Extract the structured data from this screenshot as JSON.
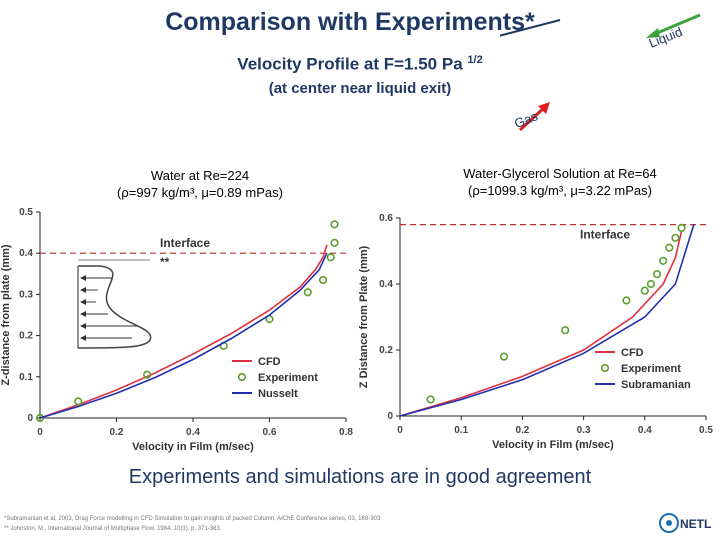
{
  "header": {
    "title": "Comparison with Experiments*",
    "subtitle": "Velocity Profile at F=1.50 Pa",
    "subtitle_sup": "1/2",
    "subtitle2": "(at center near liquid exit)"
  },
  "flow_labels": {
    "liquid": "Liquid",
    "gas": "Gas"
  },
  "left_caption": {
    "line1": "Water at Re=224",
    "line2": "(ρ=997 kg/m³, μ=0.89 mPas)"
  },
  "right_caption": {
    "line1": "Water-Glycerol  Solution at Re=64",
    "line2": "(ρ=1099.3 kg/m³, μ=3.22 mPas)"
  },
  "conclusion": "Experiments and simulations are in good agreement",
  "footnotes": [
    "*Subramanian et al, 2003, Drag Force modelling in CFD Simulation to gain insights of packed Column, AIChE Conference series, 03, 189-303",
    "** Johnston, M., International Journal of Multiphase Flow, 1984, 10(3), p. 371-383"
  ],
  "logo": {
    "text": "NETL"
  },
  "colors": {
    "title": "#1f3864",
    "cfd": "#e03040",
    "experiment": "#5aa02c",
    "model": "#2030b0",
    "interface": "#c03030",
    "liquid_arrow": "#3aa33a",
    "gas_arrow": "#e02020"
  },
  "chart_data": [
    {
      "type": "line",
      "title": "",
      "xlabel": "Velocity in Film (m/sec)",
      "ylabel": "Z-distance from plate (mm)",
      "xlim": [
        0,
        0.8
      ],
      "ylim": [
        0,
        0.5
      ],
      "xticks": [
        "0",
        "0.2",
        "0.4",
        "0.6",
        "0.8"
      ],
      "yticks": [
        "0",
        "0.1",
        "0.2",
        "0.3",
        "0.4",
        "0.5"
      ],
      "interface": {
        "y": 0.4,
        "label": "Interface"
      },
      "inset_label": "**",
      "legend": [
        "CFD",
        "Experiment",
        "Nusselt"
      ],
      "legend_position": "bottom-right",
      "series": [
        {
          "name": "CFD",
          "style": "line",
          "x": [
            0,
            0.1,
            0.2,
            0.3,
            0.4,
            0.5,
            0.6,
            0.68,
            0.72,
            0.74,
            0.75
          ],
          "y": [
            0,
            0.032,
            0.068,
            0.109,
            0.155,
            0.205,
            0.262,
            0.318,
            0.36,
            0.39,
            0.42
          ]
        },
        {
          "name": "Experiment",
          "style": "marker",
          "x": [
            0,
            0.1,
            0.28,
            0.48,
            0.6,
            0.7,
            0.74,
            0.76,
            0.77,
            0.77
          ],
          "y": [
            0,
            0.04,
            0.105,
            0.175,
            0.24,
            0.305,
            0.335,
            0.39,
            0.425,
            0.47
          ]
        },
        {
          "name": "Nusselt",
          "style": "line",
          "x": [
            0,
            0.1,
            0.2,
            0.3,
            0.4,
            0.5,
            0.6,
            0.68,
            0.73,
            0.75
          ],
          "y": [
            0,
            0.028,
            0.06,
            0.098,
            0.142,
            0.193,
            0.25,
            0.31,
            0.36,
            0.4
          ]
        }
      ]
    },
    {
      "type": "line",
      "title": "",
      "xlabel": "Velocity in Film (m/sec)",
      "ylabel": "Z Distance from Plate (mm)",
      "xlim": [
        0,
        0.5
      ],
      "ylim": [
        0,
        0.6
      ],
      "xticks": [
        "0",
        "0.1",
        "0.2",
        "0.3",
        "0.4",
        "0.5"
      ],
      "yticks": [
        "0",
        "0.2",
        "0.4",
        "0.6"
      ],
      "interface": {
        "y": 0.58,
        "label": "Interface"
      },
      "legend": [
        "CFD",
        "Experiment",
        "Subramanian"
      ],
      "legend_position": "bottom-right",
      "series": [
        {
          "name": "CFD",
          "style": "line",
          "x": [
            0,
            0.1,
            0.2,
            0.3,
            0.38,
            0.43,
            0.45,
            0.46
          ],
          "y": [
            0,
            0.055,
            0.12,
            0.2,
            0.3,
            0.4,
            0.48,
            0.56
          ]
        },
        {
          "name": "Experiment",
          "style": "marker",
          "x": [
            0.05,
            0.17,
            0.27,
            0.37,
            0.4,
            0.41,
            0.42,
            0.43,
            0.44,
            0.45,
            0.46
          ],
          "y": [
            0.05,
            0.18,
            0.26,
            0.35,
            0.38,
            0.4,
            0.43,
            0.47,
            0.51,
            0.54,
            0.57
          ]
        },
        {
          "name": "Subramanian",
          "style": "line",
          "x": [
            0,
            0.1,
            0.2,
            0.3,
            0.4,
            0.45,
            0.48
          ],
          "y": [
            0,
            0.05,
            0.11,
            0.19,
            0.3,
            0.4,
            0.58
          ]
        }
      ]
    }
  ]
}
